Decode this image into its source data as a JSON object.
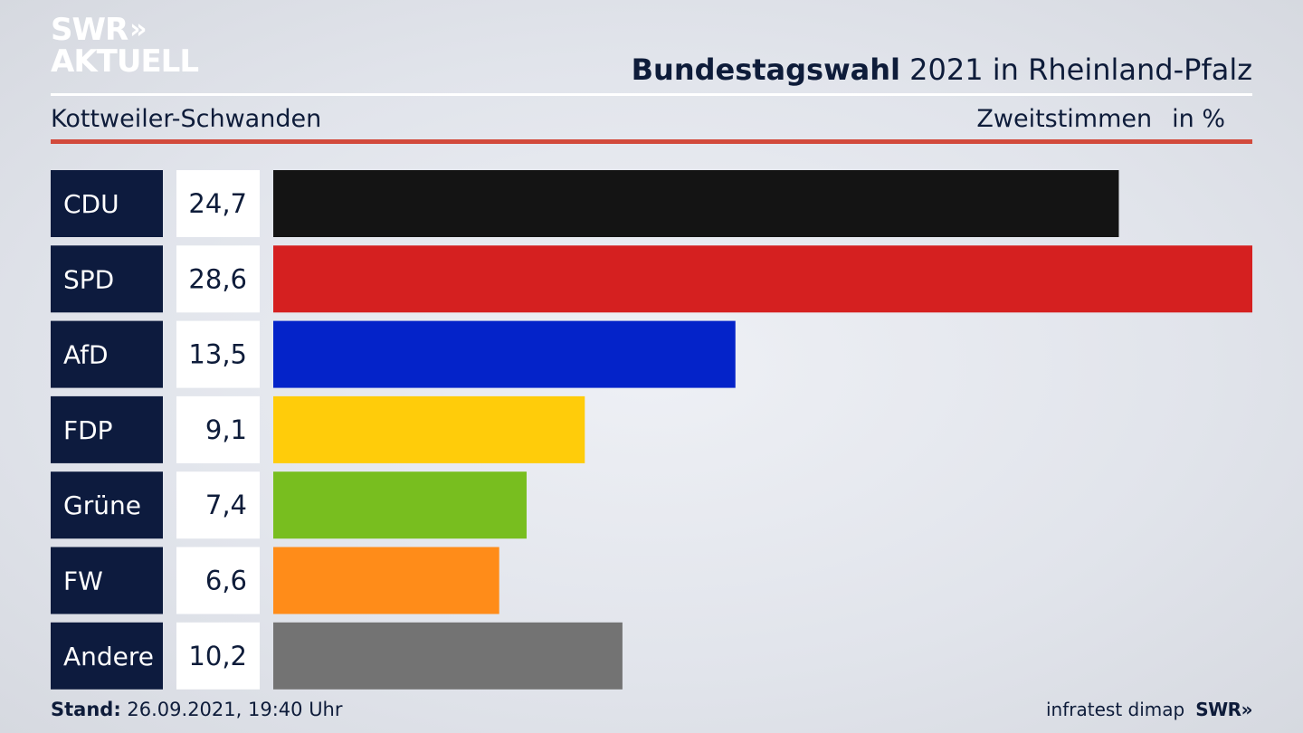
{
  "brand": {
    "logo_line1": "SWR",
    "logo_chevrons": "»",
    "logo_line2": "AKTUELL"
  },
  "header": {
    "title_bold": "Bundestagswahl",
    "title_rest": "2021 in Rheinland-Pfalz",
    "location": "Kottweiler-Schwanden",
    "measure": "Zweitstimmen",
    "unit": "in %"
  },
  "colors": {
    "label_bg": "#0d1b3e",
    "accent_red": "#d24a3c"
  },
  "chart_data": {
    "type": "bar",
    "orientation": "horizontal",
    "title": "Bundestagswahl 2021 in Rheinland-Pfalz",
    "subtitle": "Kottweiler-Schwanden",
    "xlabel": "Zweitstimmen in %",
    "ylabel": "",
    "xlim": [
      0,
      28.6
    ],
    "grid": false,
    "categories": [
      "CDU",
      "SPD",
      "AfD",
      "FDP",
      "Grüne",
      "FW",
      "Andere"
    ],
    "values": [
      24.7,
      28.6,
      13.5,
      9.1,
      7.4,
      6.6,
      10.2
    ],
    "value_labels": [
      "24,7",
      "28,6",
      "13,5",
      "9,1",
      "7,4",
      "6,6",
      "10,2"
    ],
    "colors": [
      "#141414",
      "#d52020",
      "#0423c9",
      "#ffcc0a",
      "#78be1f",
      "#ff8c19",
      "#737373"
    ]
  },
  "footer": {
    "stand_label": "Stand:",
    "stand_value": "26.09.2021, 19:40 Uhr",
    "source": "infratest dimap",
    "source_logo": "SWR»"
  }
}
